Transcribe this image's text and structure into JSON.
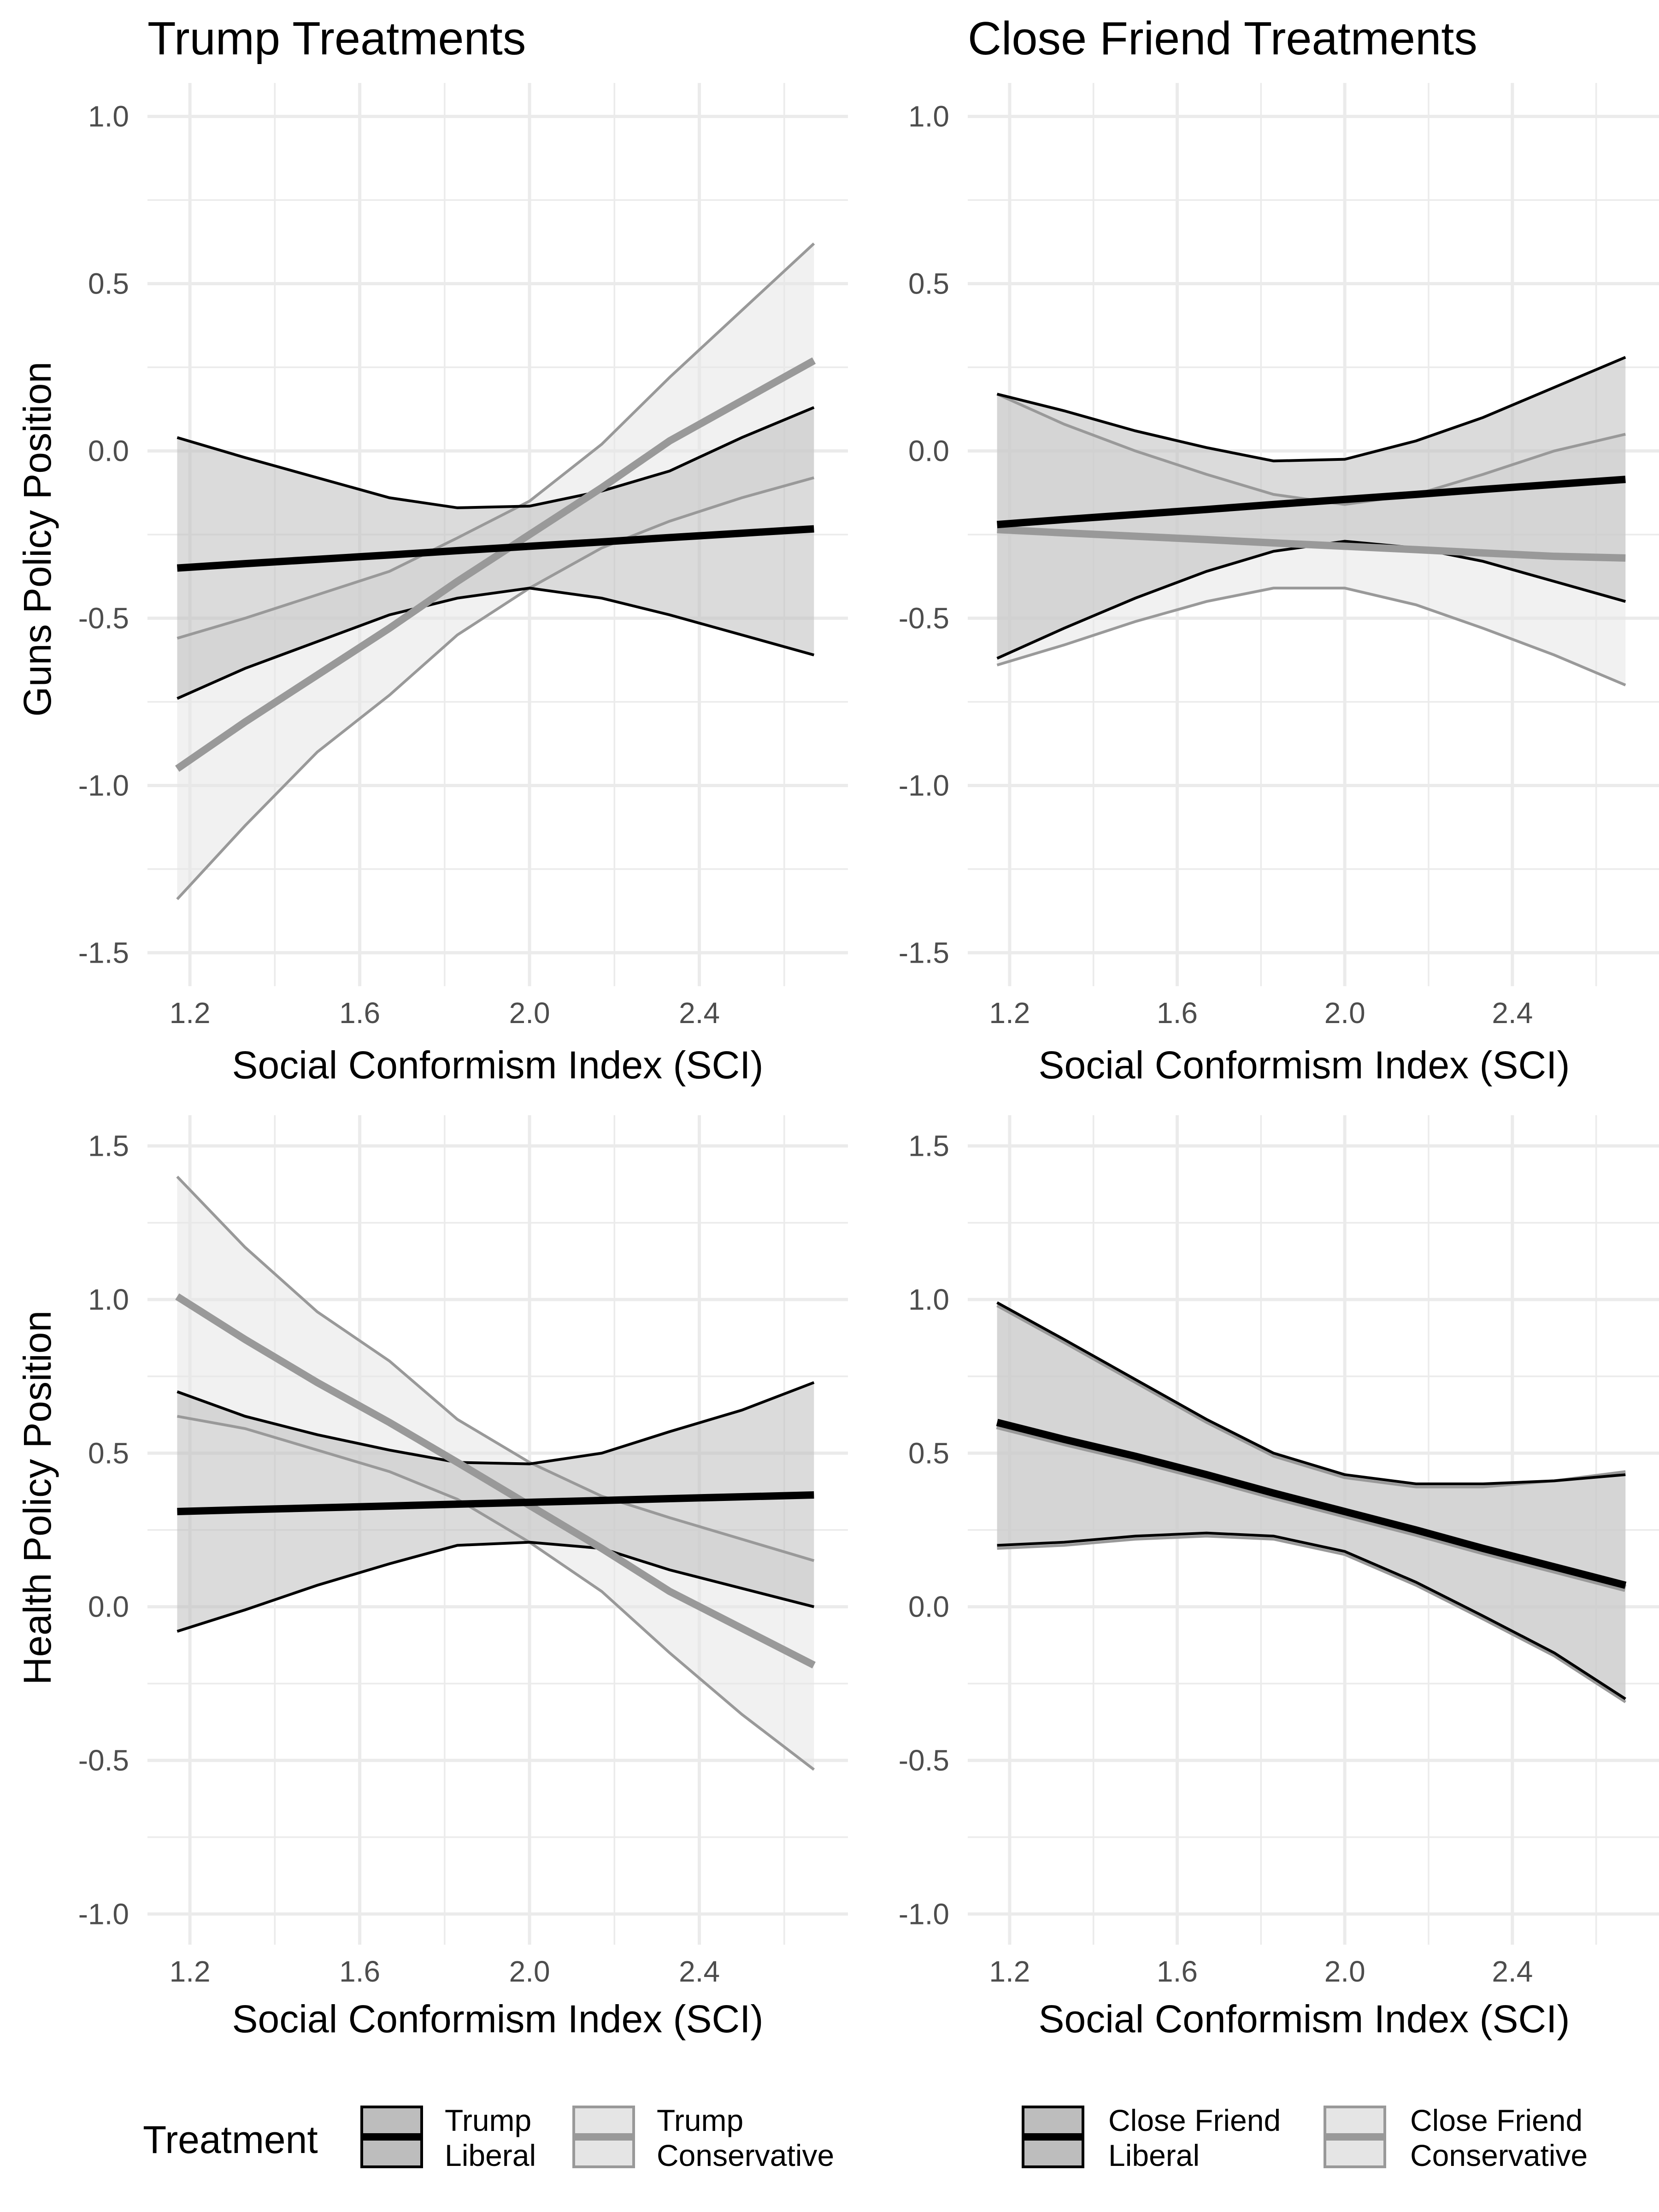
{
  "legend_treatment_title": "Treatment",
  "chart_data": [
    {
      "type": "line",
      "title": "Trump Treatments",
      "xlabel": "Social Conformism Index (SCI)",
      "ylabel": "Guns Policy Position",
      "xlim": [
        1.1,
        2.75
      ],
      "ylim": [
        -1.6,
        1.1
      ],
      "xticks": [
        "1.2",
        "1.6",
        "2.0",
        "2.4"
      ],
      "yticks": [
        "1.0",
        "0.5",
        "0.0",
        "-0.5",
        "-1.0",
        "-1.5"
      ],
      "grid": true,
      "x": [
        1.17,
        1.33,
        1.5,
        1.67,
        1.83,
        2.0,
        2.17,
        2.33,
        2.5,
        2.67
      ],
      "series": [
        {
          "name": "Trump Liberal",
          "color": "#000000",
          "fill": "#bdbdbd",
          "values": [
            -0.35,
            -0.337,
            -0.324,
            -0.311,
            -0.298,
            -0.285,
            -0.272,
            -0.259,
            -0.246,
            -0.233
          ],
          "lower": [
            -0.74,
            -0.65,
            -0.57,
            -0.49,
            -0.44,
            -0.41,
            -0.44,
            -0.49,
            -0.55,
            -0.61
          ],
          "upper": [
            0.04,
            -0.02,
            -0.08,
            -0.14,
            -0.17,
            -0.165,
            -0.12,
            -0.06,
            0.04,
            0.13
          ]
        },
        {
          "name": "Trump Conservative",
          "color": "#999999",
          "fill": "#e5e5e5",
          "values": [
            -0.95,
            -0.81,
            -0.67,
            -0.53,
            -0.39,
            -0.25,
            -0.11,
            0.03,
            0.15,
            0.27
          ],
          "lower": [
            -1.34,
            -1.12,
            -0.9,
            -0.73,
            -0.55,
            -0.41,
            -0.29,
            -0.21,
            -0.14,
            -0.08
          ],
          "upper": [
            -0.56,
            -0.5,
            -0.43,
            -0.36,
            -0.26,
            -0.15,
            0.02,
            0.22,
            0.42,
            0.62
          ]
        }
      ]
    },
    {
      "type": "line",
      "title": "Close Friend Treatments",
      "xlabel": "Social Conformism Index (SCI)",
      "ylabel": "",
      "xlim": [
        1.1,
        2.75
      ],
      "ylim": [
        -1.6,
        1.1
      ],
      "xticks": [
        "1.2",
        "1.6",
        "2.0",
        "2.4"
      ],
      "yticks": [
        "1.0",
        "0.5",
        "0.0",
        "-0.5",
        "-1.0",
        "-1.5"
      ],
      "grid": true,
      "x": [
        1.17,
        1.33,
        1.5,
        1.67,
        1.83,
        2.0,
        2.17,
        2.33,
        2.5,
        2.67
      ],
      "series": [
        {
          "name": "Close Friend Liberal",
          "color": "#000000",
          "fill": "#bdbdbd",
          "values": [
            -0.22,
            -0.205,
            -0.19,
            -0.175,
            -0.16,
            -0.145,
            -0.13,
            -0.115,
            -0.1,
            -0.085
          ],
          "lower": [
            -0.62,
            -0.53,
            -0.44,
            -0.36,
            -0.3,
            -0.27,
            -0.29,
            -0.33,
            -0.39,
            -0.45
          ],
          "upper": [
            0.17,
            0.12,
            0.06,
            0.01,
            -0.03,
            -0.025,
            0.03,
            0.1,
            0.19,
            0.28
          ]
        },
        {
          "name": "Close Friend Conservative",
          "color": "#999999",
          "fill": "#e5e5e5",
          "values": [
            -0.235,
            -0.245,
            -0.255,
            -0.265,
            -0.275,
            -0.285,
            -0.295,
            -0.305,
            -0.315,
            -0.32
          ],
          "lower": [
            -0.64,
            -0.58,
            -0.51,
            -0.45,
            -0.41,
            -0.41,
            -0.46,
            -0.53,
            -0.61,
            -0.7
          ],
          "upper": [
            0.17,
            0.08,
            0.0,
            -0.07,
            -0.13,
            -0.16,
            -0.13,
            -0.07,
            0.0,
            0.05
          ]
        }
      ]
    },
    {
      "type": "line",
      "title": "",
      "xlabel": "Social Conformism Index (SCI)",
      "ylabel": "Health Policy Position",
      "xlim": [
        1.1,
        2.75
      ],
      "ylim": [
        -1.1,
        1.6
      ],
      "xticks": [
        "1.2",
        "1.6",
        "2.0",
        "2.4"
      ],
      "yticks": [
        "1.5",
        "1.0",
        "0.5",
        "0.0",
        "-0.5",
        "-1.0"
      ],
      "grid": true,
      "x": [
        1.17,
        1.33,
        1.5,
        1.67,
        1.83,
        2.0,
        2.17,
        2.33,
        2.5,
        2.67
      ],
      "series": [
        {
          "name": "Trump Liberal",
          "color": "#000000",
          "fill": "#bdbdbd",
          "values": [
            0.31,
            0.316,
            0.322,
            0.328,
            0.334,
            0.34,
            0.346,
            0.352,
            0.358,
            0.364
          ],
          "lower": [
            -0.08,
            -0.01,
            0.07,
            0.14,
            0.2,
            0.21,
            0.19,
            0.12,
            0.06,
            0.0
          ],
          "upper": [
            0.7,
            0.62,
            0.56,
            0.51,
            0.47,
            0.465,
            0.5,
            0.57,
            0.64,
            0.73
          ]
        },
        {
          "name": "Trump Conservative",
          "color": "#999999",
          "fill": "#e5e5e5",
          "values": [
            1.01,
            0.87,
            0.73,
            0.6,
            0.47,
            0.33,
            0.19,
            0.05,
            -0.07,
            -0.19
          ],
          "lower": [
            0.62,
            0.58,
            0.51,
            0.44,
            0.35,
            0.21,
            0.05,
            -0.15,
            -0.35,
            -0.53
          ],
          "upper": [
            1.4,
            1.17,
            0.96,
            0.8,
            0.61,
            0.47,
            0.36,
            0.29,
            0.22,
            0.15
          ]
        }
      ]
    },
    {
      "type": "line",
      "title": "",
      "xlabel": "Social Conformism Index (SCI)",
      "ylabel": "",
      "xlim": [
        1.1,
        2.75
      ],
      "ylim": [
        -1.1,
        1.6
      ],
      "xticks": [
        "1.2",
        "1.6",
        "2.0",
        "2.4"
      ],
      "yticks": [
        "1.5",
        "1.0",
        "0.5",
        "0.0",
        "-0.5",
        "-1.0"
      ],
      "grid": true,
      "x": [
        1.17,
        1.33,
        1.5,
        1.67,
        1.83,
        2.0,
        2.17,
        2.33,
        2.5,
        2.67
      ],
      "series": [
        {
          "name": "Close Friend Liberal",
          "color": "#000000",
          "fill": "#bdbdbd",
          "values": [
            0.6,
            0.545,
            0.49,
            0.43,
            0.37,
            0.31,
            0.25,
            0.19,
            0.13,
            0.07
          ],
          "lower": [
            0.2,
            0.21,
            0.23,
            0.24,
            0.23,
            0.18,
            0.08,
            -0.03,
            -0.15,
            -0.3
          ],
          "upper": [
            0.99,
            0.87,
            0.74,
            0.61,
            0.5,
            0.43,
            0.4,
            0.4,
            0.41,
            0.43
          ]
        },
        {
          "name": "Close Friend Conservative",
          "color": "#999999",
          "fill": "#e5e5e5",
          "values": [
            0.59,
            0.535,
            0.48,
            0.42,
            0.36,
            0.3,
            0.24,
            0.18,
            0.12,
            0.06
          ],
          "lower": [
            0.19,
            0.2,
            0.22,
            0.23,
            0.22,
            0.17,
            0.07,
            -0.04,
            -0.16,
            -0.31
          ],
          "upper": [
            0.98,
            0.86,
            0.73,
            0.6,
            0.49,
            0.42,
            0.39,
            0.39,
            0.41,
            0.44
          ]
        }
      ]
    }
  ],
  "legends": [
    {
      "title": "Treatment",
      "entries": [
        {
          "lines": [
            "Trump",
            "Liberal"
          ],
          "color": "#000000",
          "fill": "#bdbdbd"
        },
        {
          "lines": [
            "Trump",
            "Conservative"
          ],
          "color": "#999999",
          "fill": "#e5e5e5"
        }
      ]
    },
    {
      "title": "",
      "entries": [
        {
          "lines": [
            "Close Friend",
            "Liberal"
          ],
          "color": "#000000",
          "fill": "#bdbdbd"
        },
        {
          "lines": [
            "Close Friend",
            "Conservative"
          ],
          "color": "#999999",
          "fill": "#e5e5e5"
        }
      ]
    }
  ]
}
